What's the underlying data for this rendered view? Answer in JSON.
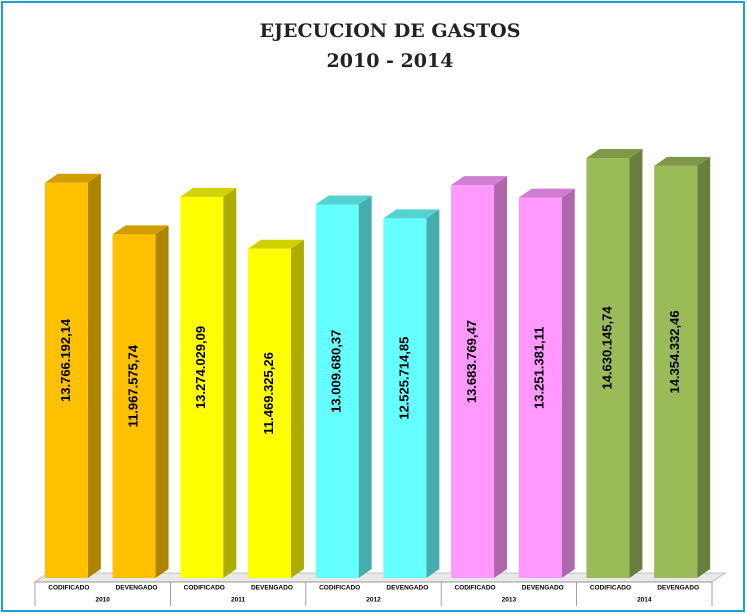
{
  "chart_data": {
    "type": "bar3d",
    "title": [
      "EJECUCION DE GASTOS",
      "2010 - 2014"
    ],
    "categories": [
      "CODIFICADO",
      "DEVENGADO",
      "CODIFICADO",
      "DEVENGADO",
      "CODIFICADO",
      "DEVENGADO",
      "CODIFICADO",
      "DEVENGADO",
      "CODIFICADO",
      "DEVENGADO"
    ],
    "groups": [
      "2010",
      "2011",
      "2012",
      "2013",
      "2014"
    ],
    "values": [
      13766192.14,
      11967575.74,
      13274029.09,
      11469325.26,
      13009680.37,
      12525714.85,
      13683769.47,
      13251381.11,
      14630145.74,
      14354332.46
    ],
    "value_labels": [
      "13.766.192,14",
      "11.967.575,74",
      "13.274.029,09",
      "11.469.325,26",
      "13.009.680,37",
      "12.525.714,85",
      "13.683.769,47",
      "13.251.381,11",
      "14.630.145,74",
      "14.354.332,46"
    ],
    "colors": [
      "#FFC000",
      "#FFC000",
      "#FFFF00",
      "#FFFF00",
      "#66FFFF",
      "#66FFFF",
      "#FF99FF",
      "#FF99FF",
      "#9BBB59",
      "#9BBB59"
    ]
  }
}
